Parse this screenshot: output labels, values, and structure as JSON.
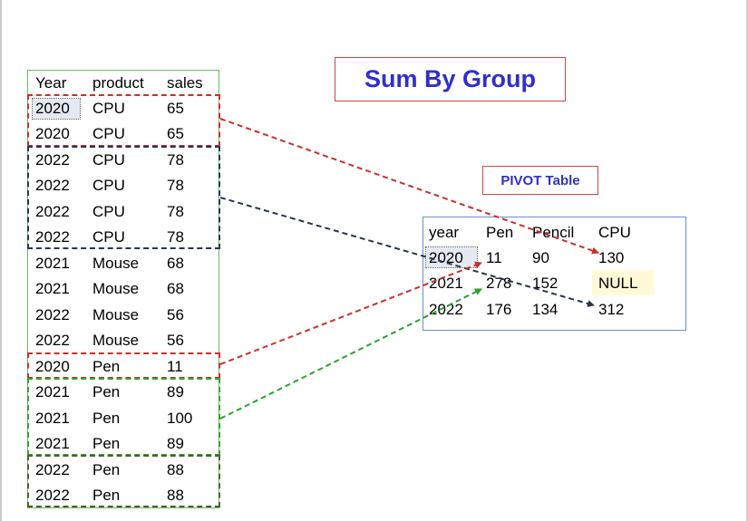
{
  "title": "Sum By Group",
  "pivot_label": "PIVOT Table",
  "source_table": {
    "headers": [
      "Year",
      "product",
      "sales"
    ],
    "rows": [
      [
        "2020",
        "CPU",
        "65"
      ],
      [
        "2020",
        "CPU",
        "65"
      ],
      [
        "2022",
        "CPU",
        "78"
      ],
      [
        "2022",
        "CPU",
        "78"
      ],
      [
        "2022",
        "CPU",
        "78"
      ],
      [
        "2022",
        "CPU",
        "78"
      ],
      [
        "2021",
        "Mouse",
        "68"
      ],
      [
        "2021",
        "Mouse",
        "68"
      ],
      [
        "2022",
        "Mouse",
        "56"
      ],
      [
        "2022",
        "Mouse",
        "56"
      ],
      [
        "2020",
        "Pen",
        "11"
      ],
      [
        "2021",
        "Pen",
        "89"
      ],
      [
        "2021",
        "Pen",
        "100"
      ],
      [
        "2021",
        "Pen",
        "89"
      ],
      [
        "2022",
        "Pen",
        "88"
      ],
      [
        "2022",
        "Pen",
        "88"
      ]
    ]
  },
  "pivot_table": {
    "headers": [
      "year",
      "Pen",
      "Pencil",
      "CPU"
    ],
    "rows": [
      [
        "2020",
        "11",
        "90",
        "130"
      ],
      [
        "2021",
        "278",
        "152",
        "NULL"
      ],
      [
        "2022",
        "176",
        "134",
        "312"
      ]
    ]
  },
  "colors": {
    "red_group": "#c8302a",
    "navy_group": "#283350",
    "green_group": "#2ea12e",
    "olive_group": "#4e5e2a",
    "title_text": "#2f2fcf"
  }
}
